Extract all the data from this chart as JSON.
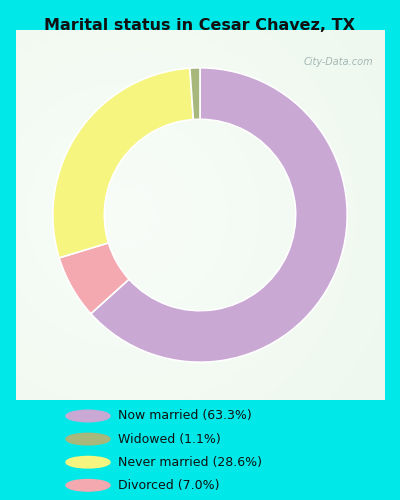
{
  "title": "Marital status in Cesar Chavez, TX",
  "slices_ordered": [
    63.3,
    7.0,
    28.6,
    1.1
  ],
  "colors_ordered": [
    "#c9a8d4",
    "#f4a8b0",
    "#f5f580",
    "#a8b87c"
  ],
  "labels": [
    "Now married (63.3%)",
    "Widowed (1.1%)",
    "Never married (28.6%)",
    "Divorced (7.0%)"
  ],
  "legend_colors": [
    "#c9a8d4",
    "#a8b87c",
    "#f5f580",
    "#f4a8b0"
  ],
  "bg_color": "#00e8e8",
  "chart_bg_color": "#d4ecd4",
  "title_color": "#111111",
  "watermark": "City-Data.com",
  "donut_width": 0.35,
  "start_angle": 90,
  "figsize": [
    4.0,
    5.0
  ],
  "dpi": 100
}
